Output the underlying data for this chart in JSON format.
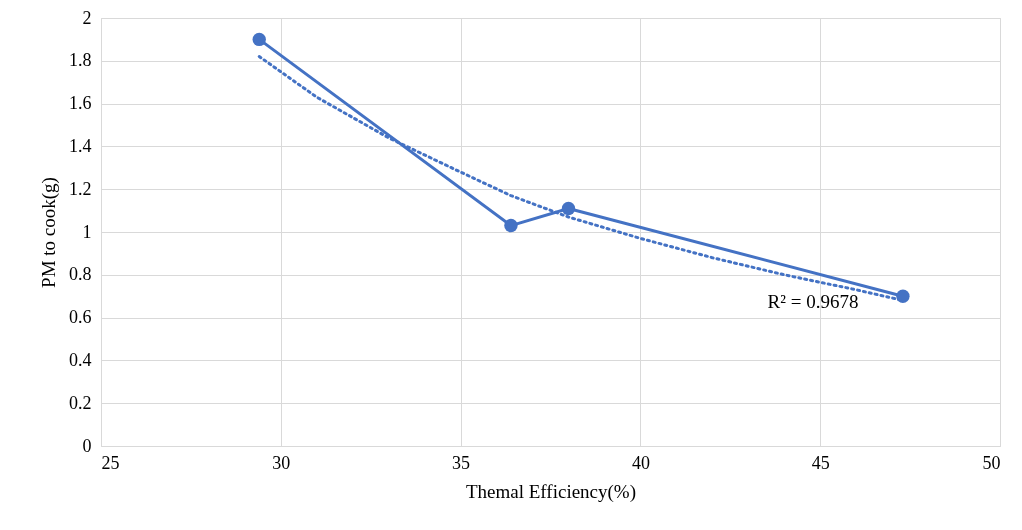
{
  "chart_data": {
    "type": "line",
    "xlabel": "Themal Efficiency(%)",
    "ylabel": "PM to cook(g)",
    "xlim": [
      25,
      50
    ],
    "xticks": [
      25,
      30,
      35,
      40,
      45,
      50
    ],
    "ylim": [
      0,
      2
    ],
    "yticks": [
      0,
      0.2,
      0.4,
      0.6,
      0.8,
      1,
      1.2,
      1.4,
      1.6,
      1.8,
      2
    ],
    "grid": true,
    "series": [
      {
        "color": "#4472c4",
        "marker": "circle",
        "line_style": "solid",
        "x": [
          29.4,
          36.4,
          38.0,
          47.3
        ],
        "values": [
          1.9,
          1.03,
          1.11,
          0.7
        ]
      },
      {
        "color": "#4472c4",
        "marker": "none",
        "line_style": "dotted",
        "x": [
          29.4,
          31,
          33,
          35,
          36.4,
          38,
          40,
          42,
          44,
          46,
          47.3
        ],
        "values": [
          1.82,
          1.63,
          1.44,
          1.28,
          1.17,
          1.07,
          0.97,
          0.88,
          0.8,
          0.73,
          0.68
        ]
      }
    ],
    "annotations": [
      "R² = 0.9678"
    ]
  }
}
